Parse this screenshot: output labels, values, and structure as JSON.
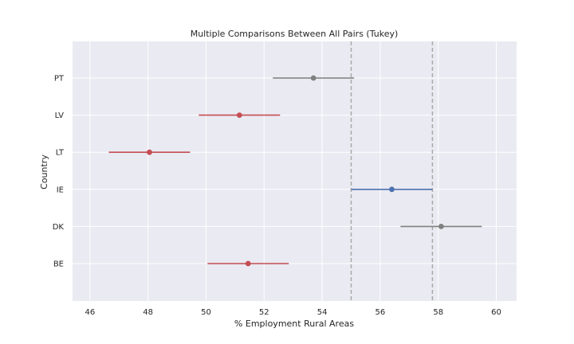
{
  "chart_data": {
    "type": "interval",
    "title": "Multiple Comparisons Between All Pairs (Tukey)",
    "xlabel": "% Employment Rural Areas",
    "ylabel": "Country",
    "xlim": [
      45.4,
      60.7
    ],
    "x_ticks": [
      46,
      48,
      50,
      52,
      54,
      56,
      58,
      60
    ],
    "grid": true,
    "categories": [
      "PT",
      "LV",
      "LT",
      "IE",
      "DK",
      "BE"
    ],
    "points": [
      {
        "label": "PT",
        "mean": 53.7,
        "lower": 52.3,
        "upper": 55.1,
        "color": "#808080"
      },
      {
        "label": "LV",
        "mean": 51.15,
        "lower": 49.75,
        "upper": 52.55,
        "color": "#c44e52"
      },
      {
        "label": "LT",
        "mean": 48.05,
        "lower": 46.65,
        "upper": 49.45,
        "color": "#c44e52"
      },
      {
        "label": "IE",
        "mean": 56.4,
        "lower": 55.0,
        "upper": 57.8,
        "color": "#4c72b0"
      },
      {
        "label": "DK",
        "mean": 58.1,
        "lower": 56.7,
        "upper": 59.5,
        "color": "#808080"
      },
      {
        "label": "BE",
        "mean": 51.45,
        "lower": 50.05,
        "upper": 52.85,
        "color": "#c44e52"
      }
    ],
    "reference_lines": [
      55.0,
      57.8
    ],
    "colors": {
      "background": "#eaeaf2",
      "grid": "#ffffff",
      "reference": "#a9a9a9"
    }
  }
}
